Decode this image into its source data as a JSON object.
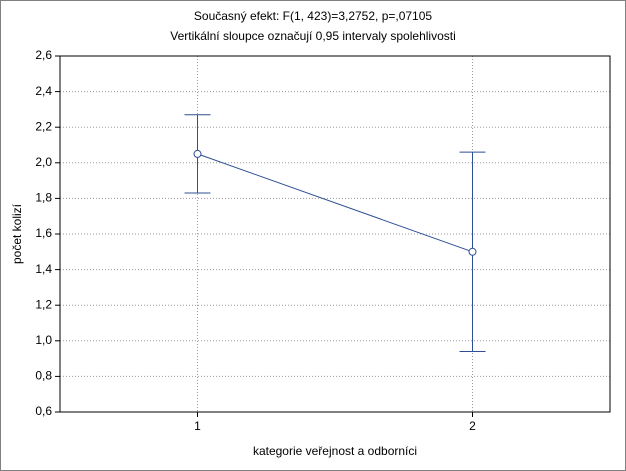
{
  "chart_data": {
    "type": "line",
    "title": "Současný efekt: F(1, 423)=3,2752, p=,07105",
    "subtitle": "Vertikální sloupce označují 0,95 intervaly spolehlivosti",
    "x_label": "kategorie veřejnost a odborníci",
    "y_label": "počet kolizí",
    "categories": [
      "1",
      "2"
    ],
    "values": [
      2.05,
      1.5
    ],
    "errors": [
      0.22,
      0.56
    ],
    "color": "#2f4f94",
    "ylim": [
      0.6,
      2.6
    ],
    "yticks": [
      {
        "value": 0.6,
        "label": "0,6"
      },
      {
        "value": 0.8,
        "label": "0,8"
      },
      {
        "value": 1.0,
        "label": "1,0"
      },
      {
        "value": 1.2,
        "label": "1,2"
      },
      {
        "value": 1.4,
        "label": "1,4"
      },
      {
        "value": 1.6,
        "label": "1,6"
      },
      {
        "value": 1.8,
        "label": "1,8"
      },
      {
        "value": 2.0,
        "label": "2,0"
      },
      {
        "value": 2.2,
        "label": "2,2"
      },
      {
        "value": 2.4,
        "label": "2,4"
      },
      {
        "value": 2.6,
        "label": "2,6"
      }
    ],
    "grid": true
  }
}
